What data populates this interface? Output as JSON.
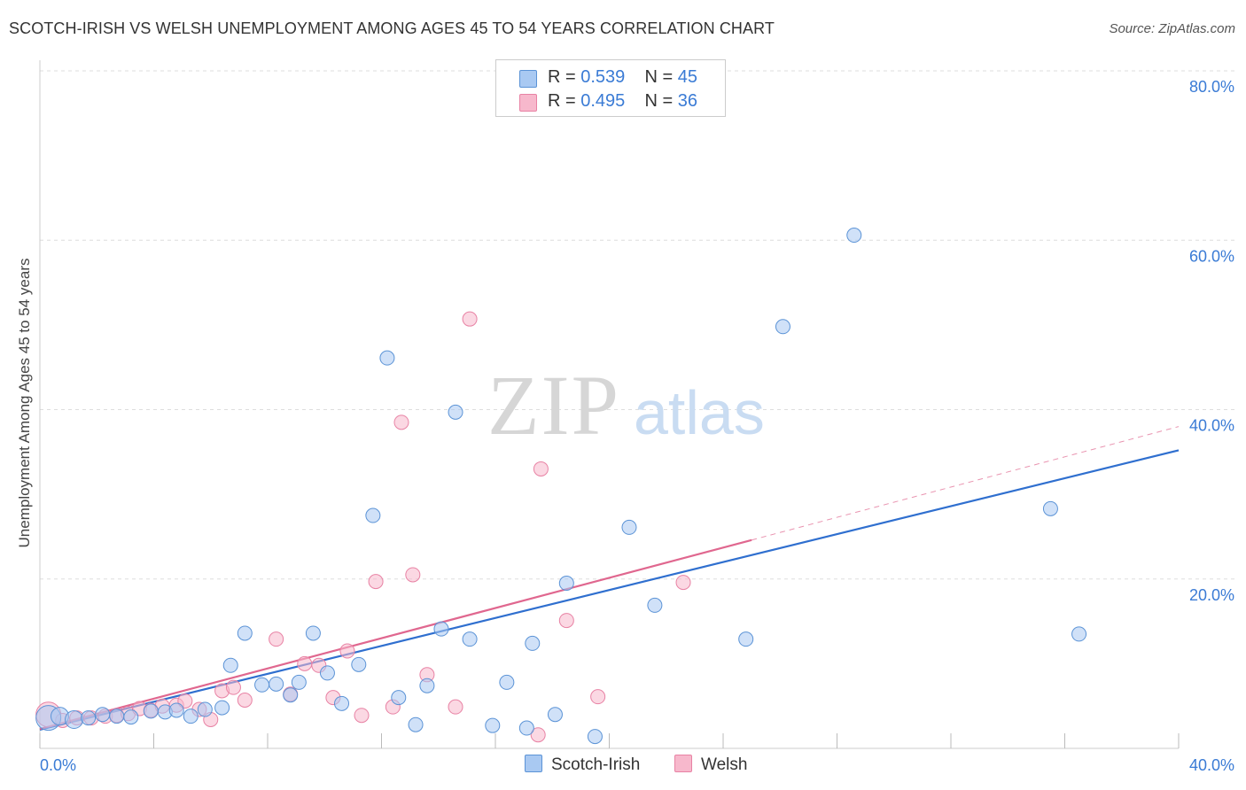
{
  "title": "SCOTCH-IRISH VS WELSH UNEMPLOYMENT AMONG AGES 45 TO 54 YEARS CORRELATION CHART",
  "source": "Source: ZipAtlas.com",
  "legend": {
    "r_label": "R =",
    "n_label": "N =",
    "rows": [
      {
        "r": "0.539",
        "n": "45"
      },
      {
        "r": "0.495",
        "n": "36"
      }
    ]
  },
  "bottom_legend": [
    "Scotch-Irish",
    "Welsh"
  ],
  "watermark": {
    "zip": "ZIP",
    "atlas": "atlas"
  },
  "colors": {
    "scotch_irish_fill": "#a9c9f2",
    "scotch_irish_stroke": "#5b93d6",
    "scotch_irish_line": "#2f6fcf",
    "welsh_fill": "#f7b8cc",
    "welsh_stroke": "#e882a4",
    "welsh_line": "#e0678f",
    "tick_label": "#3a7bd5"
  },
  "chart_data": {
    "type": "scatter",
    "title": "SCOTCH-IRISH VS WELSH UNEMPLOYMENT AMONG AGES 45 TO 54 YEARS CORRELATION CHART",
    "xlabel": "",
    "ylabel": "Unemployment Among Ages 45 to 54 years",
    "xlim": [
      0,
      40
    ],
    "ylim": [
      0,
      80
    ],
    "x_tick_labels": [
      "0.0%",
      "40.0%"
    ],
    "y_tick_labels": [
      "20.0%",
      "40.0%",
      "60.0%",
      "80.0%"
    ],
    "y_tick_values": [
      20,
      40,
      60,
      80
    ],
    "grid": true,
    "legend_position": "top-center",
    "series": [
      {
        "name": "Scotch-Irish",
        "r": 0.539,
        "n": 45,
        "points": [
          [
            0.3,
            3.6
          ],
          [
            0.7,
            3.8
          ],
          [
            1.2,
            3.4
          ],
          [
            1.7,
            3.6
          ],
          [
            2.2,
            4.0
          ],
          [
            2.7,
            3.8
          ],
          [
            3.2,
            3.7
          ],
          [
            3.9,
            4.4
          ],
          [
            4.4,
            4.3
          ],
          [
            4.8,
            4.5
          ],
          [
            5.3,
            3.8
          ],
          [
            5.8,
            4.6
          ],
          [
            6.4,
            4.8
          ],
          [
            6.7,
            9.8
          ],
          [
            7.2,
            13.6
          ],
          [
            7.8,
            7.5
          ],
          [
            8.3,
            7.6
          ],
          [
            8.8,
            6.3
          ],
          [
            9.1,
            7.8
          ],
          [
            9.6,
            13.6
          ],
          [
            10.1,
            8.9
          ],
          [
            10.6,
            5.3
          ],
          [
            11.2,
            9.9
          ],
          [
            11.7,
            27.5
          ],
          [
            12.2,
            46.1
          ],
          [
            12.6,
            6.0
          ],
          [
            13.2,
            2.8
          ],
          [
            13.6,
            7.4
          ],
          [
            14.1,
            14.1
          ],
          [
            14.6,
            39.7
          ],
          [
            15.1,
            12.9
          ],
          [
            15.9,
            2.7
          ],
          [
            16.4,
            7.8
          ],
          [
            17.1,
            2.4
          ],
          [
            17.3,
            12.4
          ],
          [
            18.1,
            4.0
          ],
          [
            18.5,
            19.5
          ],
          [
            19.5,
            1.4
          ],
          [
            20.7,
            26.1
          ],
          [
            21.6,
            16.9
          ],
          [
            24.8,
            12.9
          ],
          [
            26.1,
            49.8
          ],
          [
            28.6,
            60.6
          ],
          [
            35.5,
            28.3
          ],
          [
            36.5,
            13.5
          ]
        ],
        "trendline": {
          "x": [
            0,
            40
          ],
          "y": [
            2.2,
            35.2
          ]
        }
      },
      {
        "name": "Welsh",
        "r": 0.495,
        "n": 36,
        "points": [
          [
            0.3,
            4.0
          ],
          [
            0.8,
            3.3
          ],
          [
            1.3,
            3.6
          ],
          [
            1.8,
            3.6
          ],
          [
            2.3,
            3.8
          ],
          [
            2.7,
            3.9
          ],
          [
            3.1,
            4.1
          ],
          [
            3.5,
            4.7
          ],
          [
            3.9,
            4.5
          ],
          [
            4.3,
            5.0
          ],
          [
            4.8,
            5.1
          ],
          [
            5.1,
            5.6
          ],
          [
            5.6,
            4.6
          ],
          [
            6.0,
            3.4
          ],
          [
            6.4,
            6.8
          ],
          [
            6.8,
            7.2
          ],
          [
            7.2,
            5.7
          ],
          [
            8.3,
            12.9
          ],
          [
            8.8,
            6.4
          ],
          [
            9.3,
            10.0
          ],
          [
            9.8,
            9.8
          ],
          [
            10.3,
            6.0
          ],
          [
            10.8,
            11.5
          ],
          [
            11.3,
            3.9
          ],
          [
            11.8,
            19.7
          ],
          [
            12.4,
            4.9
          ],
          [
            12.7,
            38.5
          ],
          [
            13.1,
            20.5
          ],
          [
            13.6,
            8.7
          ],
          [
            14.6,
            4.9
          ],
          [
            15.1,
            50.7
          ],
          [
            17.5,
            1.6
          ],
          [
            17.6,
            33.0
          ],
          [
            18.5,
            15.1
          ],
          [
            19.6,
            6.1
          ],
          [
            22.6,
            19.6
          ]
        ],
        "trendline": {
          "x": [
            0,
            25
          ],
          "y": [
            2.3,
            24.6
          ]
        },
        "trendline_extension": {
          "x": [
            25,
            40
          ],
          "y": [
            24.6,
            38.0
          ]
        }
      }
    ]
  }
}
